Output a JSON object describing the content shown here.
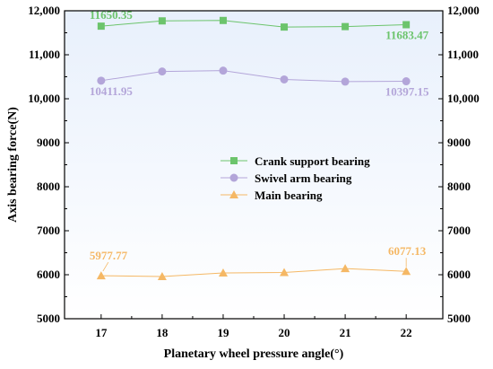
{
  "chart_data": {
    "type": "line",
    "title": "",
    "xlabel": "Planetary wheel pressure angle(°)",
    "ylabel": "Axis bearing force(N)",
    "x": [
      17,
      18,
      19,
      20,
      21,
      22
    ],
    "xlim": [
      16.4,
      22.6
    ],
    "ylim": [
      5000,
      12000
    ],
    "x_ticks": [
      "17",
      "18",
      "19",
      "20",
      "21",
      "22"
    ],
    "y_ticks": [
      "5000",
      "6000",
      "7000",
      "8000",
      "9000",
      "10,000",
      "11,000",
      "12,000"
    ],
    "y_tick_values": [
      5000,
      6000,
      7000,
      8000,
      9000,
      10000,
      11000,
      12000
    ],
    "legend_position": "center-right",
    "background": {
      "top_color": "#e8f0fc",
      "bottom_color": "#ffffff"
    },
    "series": [
      {
        "name": "Crank support bearing",
        "values": [
          11650.35,
          11770,
          11780,
          11630,
          11640,
          11683.47
        ],
        "color": "#6cc46c",
        "marker": "square",
        "labels": [
          {
            "index": 0,
            "text": "11650.35"
          },
          {
            "index": 5,
            "text": "11683.47"
          }
        ]
      },
      {
        "name": "Swivel arm bearing",
        "values": [
          10411.95,
          10620,
          10640,
          10440,
          10390,
          10397.15
        ],
        "color": "#b3a5d9",
        "marker": "circle",
        "labels": [
          {
            "index": 0,
            "text": "10411.95"
          },
          {
            "index": 5,
            "text": "10397.15"
          }
        ]
      },
      {
        "name": "Main bearing",
        "values": [
          5977.77,
          5960,
          6040,
          6050,
          6140,
          6077.13
        ],
        "color": "#f5b865",
        "marker": "triangle",
        "labels": [
          {
            "index": 0,
            "text": "5977.77"
          },
          {
            "index": 5,
            "text": "6077.13"
          }
        ]
      }
    ]
  }
}
